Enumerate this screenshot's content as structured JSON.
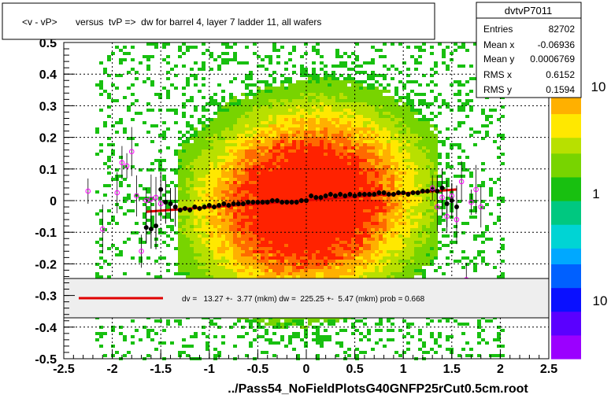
{
  "title": "<v - vP>       versus  tvP =>  dw for barrel 4, layer 7 ladder 11, all wafers",
  "footer": "../Pass54_NoFieldPlotsG40GNFP25rCut0.5cm.root",
  "stats": {
    "name": "dvtvP7011",
    "rows": [
      {
        "label": "Entries",
        "value": "82702"
      },
      {
        "label": "Mean x",
        "value": "-0.06936"
      },
      {
        "label": "Mean y",
        "value": "0.0006769"
      },
      {
        "label": "RMS x",
        "value": "0.6152"
      },
      {
        "label": "RMS y",
        "value": "0.1594"
      }
    ]
  },
  "legend": {
    "fit_text": "dv =   13.27 +-  3.77 (mkm) dw =  225.25 +-  5.47 (mkm) prob = 0.668",
    "line_color": "#e00000"
  },
  "palette": {
    "labels": [
      "10",
      "1",
      "10"
    ]
  },
  "chart_data": {
    "type": "heatmap",
    "xlim": [
      -2.5,
      2.5
    ],
    "ylim": [
      -0.5,
      0.5
    ],
    "x_ticks": [
      "-2.5",
      "-2",
      "-1.5",
      "-1",
      "-0.5",
      "0",
      "0.5",
      "1",
      "1.5",
      "2",
      "2.5"
    ],
    "y_ticks": [
      "-0.5",
      "-0.4",
      "-0.3",
      "-0.2",
      "-0.1",
      "0",
      "0.1",
      "0.2",
      "0.3",
      "0.4",
      "0.5"
    ],
    "grid": true,
    "fit_line": {
      "x": [
        -1.65,
        1.55
      ],
      "y": [
        -0.035,
        0.035
      ],
      "color": "#e00000"
    },
    "profile_black": {
      "x": [
        -1.65,
        -1.6,
        -1.55,
        -1.5,
        -1.45,
        -1.4,
        -1.35,
        -1.3,
        -1.25,
        -1.2,
        -1.15,
        -1.1,
        -1.05,
        -1.0,
        -0.95,
        -0.9,
        -0.85,
        -0.8,
        -0.75,
        -0.7,
        -0.65,
        -0.6,
        -0.55,
        -0.5,
        -0.45,
        -0.4,
        -0.35,
        -0.3,
        -0.25,
        -0.2,
        -0.15,
        -0.1,
        -0.05,
        0.0,
        0.05,
        0.1,
        0.15,
        0.2,
        0.25,
        0.3,
        0.35,
        0.4,
        0.45,
        0.5,
        0.55,
        0.6,
        0.65,
        0.7,
        0.75,
        0.8,
        0.85,
        0.9,
        0.95,
        1.0,
        1.05,
        1.1,
        1.15,
        1.2,
        1.25,
        1.3,
        1.35,
        1.4,
        1.45,
        1.5,
        1.55
      ],
      "y": [
        -0.085,
        -0.09,
        -0.08,
        0.035,
        -0.005,
        -0.01,
        -0.02,
        -0.03,
        -0.025,
        -0.03,
        -0.02,
        -0.025,
        -0.02,
        -0.015,
        -0.02,
        -0.015,
        -0.01,
        -0.015,
        -0.01,
        -0.01,
        -0.01,
        -0.005,
        -0.005,
        -0.005,
        -0.005,
        -0.005,
        0.0,
        0.0,
        -0.005,
        -0.005,
        -0.005,
        -0.005,
        0.0,
        0.0,
        0.015,
        0.01,
        0.01,
        0.015,
        0.02,
        0.015,
        0.02,
        0.015,
        0.02,
        0.015,
        0.02,
        0.02,
        0.02,
        0.02,
        0.025,
        0.025,
        0.02,
        0.02,
        0.025,
        0.025,
        0.02,
        0.025,
        0.025,
        0.03,
        0.03,
        0.035,
        0.03,
        0.04,
        -0.01,
        0.0,
        -0.02
      ]
    },
    "profile_magenta": {
      "x": [
        -2.25,
        -2.1,
        -1.95,
        -1.9,
        -1.85,
        -1.8,
        -1.75,
        -1.7,
        -1.65,
        -1.6,
        -1.55,
        -1.5,
        1.3,
        1.35,
        1.4,
        1.45,
        1.5,
        1.55,
        1.6,
        1.65,
        1.7,
        1.75,
        1.8
      ],
      "y": [
        0.03,
        -0.09,
        0.025,
        0.12,
        0.11,
        0.155,
        0.015,
        -0.16,
        0.0,
        0.005,
        0.01,
        -0.01,
        0.04,
        -0.02,
        0.01,
        -0.05,
        0.015,
        -0.06,
        0.06,
        -0.25,
        -0.005,
        0.035,
        -0.02
      ]
    },
    "density_model": {
      "center_x": 0.0,
      "center_y": 0.0,
      "sigma_x": 0.62,
      "sigma_y": 0.16,
      "slope": 0.022
    }
  }
}
